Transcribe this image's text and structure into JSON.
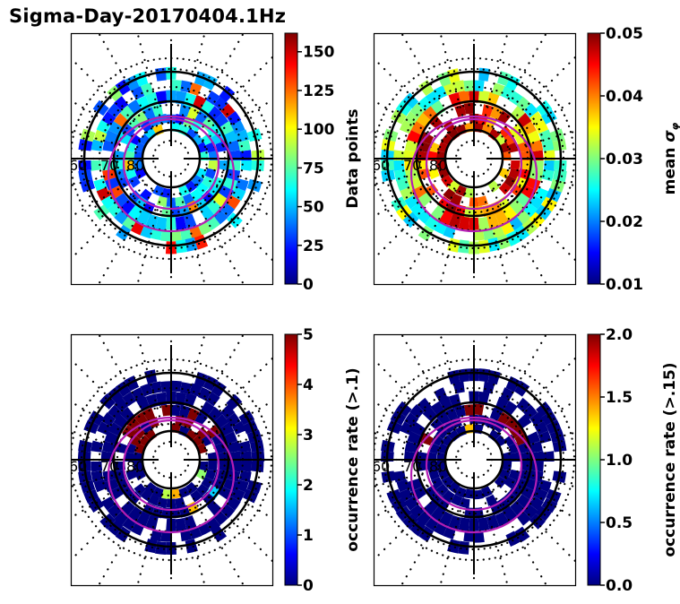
{
  "figure_title": "Sigma-Day-20170404.1Hz",
  "colormap": "jet",
  "colormap_stops": [
    "#00007f",
    "#0000ff",
    "#007fff",
    "#00ffff",
    "#7fff7f",
    "#ffff00",
    "#ff7f00",
    "#ff0000",
    "#7f0000"
  ],
  "circle_color": "#000000",
  "oval_color": "#b41eb4",
  "chart_data": [
    {
      "type": "heatmap",
      "projection": "polar",
      "title": "",
      "lat_labels": [
        "60",
        "70",
        "80"
      ],
      "colorbar": {
        "label": "Data points",
        "vmin": 0,
        "vmax": 162,
        "ticks": [
          0,
          25,
          50,
          75,
          100,
          125,
          150
        ],
        "tick_labels": [
          "0",
          "25",
          "50",
          "75",
          "100",
          "125",
          "150"
        ]
      },
      "dominant_level": 0.3,
      "notes": "Counts mostly 20-60 (blue/cyan), sparse yellow/orange/red bins near 100-160"
    },
    {
      "type": "heatmap",
      "projection": "polar",
      "title": "",
      "lat_labels": [
        "60",
        "70",
        "80"
      ],
      "colorbar": {
        "label": "mean σφ",
        "label_main": "mean ",
        "label_symbol": "σ",
        "label_sub": "φ",
        "vmin": 0.01,
        "vmax": 0.05,
        "ticks": [
          0.01,
          0.02,
          0.03,
          0.04,
          0.05
        ],
        "tick_labels": [
          "0.01",
          "0.02",
          "0.03",
          "0.04",
          "0.05"
        ]
      },
      "dominant_level": 0.45,
      "notes": "Outer ring ~0.02-0.03; inner auroral ring up to 0.05 (dark red)"
    },
    {
      "type": "heatmap",
      "projection": "polar",
      "title": "",
      "lat_labels": [
        "60",
        "70",
        "80"
      ],
      "colorbar": {
        "label": "occurrence rate (>.1)",
        "vmin": 0,
        "vmax": 5,
        "ticks": [
          0,
          1,
          2,
          3,
          4,
          5
        ],
        "tick_labels": [
          "0",
          "1",
          "2",
          "3",
          "4",
          "5"
        ]
      },
      "dominant_level": 0.0,
      "notes": "Mostly 0 (dark blue); dusk-side high-latitude bins at 5 (dark red)"
    },
    {
      "type": "heatmap",
      "projection": "polar",
      "title": "",
      "lat_labels": [
        "60",
        "70",
        "80"
      ],
      "colorbar": {
        "label": "occurrence rate (>.15)",
        "vmin": 0.0,
        "vmax": 2.0,
        "ticks": [
          0.0,
          0.5,
          1.0,
          1.5,
          2.0
        ],
        "tick_labels": [
          "0.0",
          "0.5",
          "1.0",
          "1.5",
          "2.0"
        ]
      },
      "dominant_level": 0.0,
      "notes": "Mostly 0.0; few bins at 2.0 near noon/dusk high latitude"
    }
  ]
}
